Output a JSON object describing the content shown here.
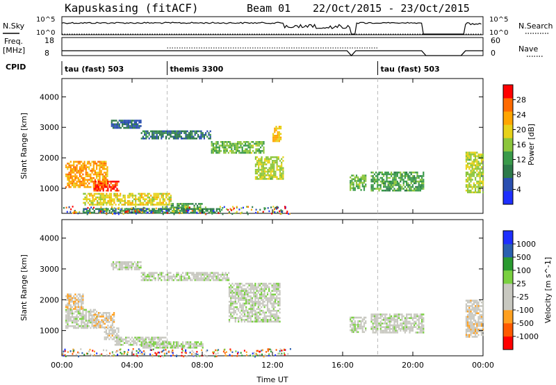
{
  "header": {
    "title": "Kapuskasing (fitACF)",
    "beam": "Beam 01",
    "date_range": "22/Oct/2015 - 23/Oct/2015"
  },
  "noise_panel": {
    "left_label": "N.Sky",
    "right_label": "N.Search",
    "left_ticks": [
      "10^5",
      "10^0"
    ],
    "right_ticks": [
      "10^5",
      "10^0"
    ]
  },
  "freq_panel": {
    "left_label_1": "Freq.",
    "left_label_2": "[MHz]",
    "right_label": "Nave",
    "left_ticks": [
      "18",
      "8"
    ],
    "right_ticks": [
      "60",
      "0"
    ]
  },
  "cpid": {
    "label": "CPID",
    "segments": [
      {
        "name": "tau (fast) 503",
        "start": 0
      },
      {
        "name": "themis 3300",
        "start": 6
      },
      {
        "name": "tau (fast) 503",
        "start": 18
      }
    ]
  },
  "colors": {
    "power": [
      "#1e2fff",
      "#2a4fb0",
      "#2d7a4a",
      "#3a9a4a",
      "#8cc63c",
      "#e7d21a",
      "#ffa500",
      "#ff6a00",
      "#ff0000"
    ],
    "velocity": [
      "#ff0000",
      "#ff5a00",
      "#ffa020",
      "#c8c8c0",
      "#c8c8c0",
      "#7ad040",
      "#2a9a30",
      "#2a60b0",
      "#1e2fff"
    ]
  },
  "chart_data": [
    {
      "type": "heatmap",
      "name": "power",
      "xlabel": "",
      "ylabel": "Slant Range [km]",
      "xlim": [
        0,
        24
      ],
      "ylim": [
        180,
        4600
      ],
      "yticks": [
        1000,
        2000,
        3000,
        4000
      ],
      "xticks": [
        0,
        4,
        8,
        12,
        16,
        20,
        24
      ],
      "xtick_labels": [
        "00:00",
        "04:00",
        "08:00",
        "12:00",
        "16:00",
        "20:00",
        "00:00"
      ],
      "colorbar": {
        "label": "Power [dB]",
        "ticks": [
          "4",
          "8",
          "12",
          "16",
          "20",
          "24",
          "28"
        ],
        "range": [
          0,
          30
        ]
      },
      "bands": [
        {
          "x0": 0.2,
          "x1": 2.6,
          "r0": 1050,
          "r1": 1900,
          "v": 22
        },
        {
          "x0": 1.8,
          "x1": 3.2,
          "r0": 900,
          "r1": 1250,
          "v": 27
        },
        {
          "x0": 1.2,
          "x1": 6.2,
          "r0": 450,
          "r1": 850,
          "v": 18
        },
        {
          "x0": 6.2,
          "x1": 8.0,
          "r0": 350,
          "r1": 520,
          "v": 12
        },
        {
          "x0": 1.2,
          "x1": 9.0,
          "r0": 200,
          "r1": 350,
          "v": 9
        },
        {
          "x0": 2.8,
          "x1": 4.5,
          "r0": 3000,
          "r1": 3250,
          "v": 6
        },
        {
          "x0": 4.5,
          "x1": 8.5,
          "r0": 2650,
          "r1": 2900,
          "v": 8
        },
        {
          "x0": 8.5,
          "x1": 11.5,
          "r0": 2150,
          "r1": 2550,
          "v": 14
        },
        {
          "x0": 11.0,
          "x1": 12.6,
          "r0": 1300,
          "r1": 2050,
          "v": 16
        },
        {
          "x0": 12.0,
          "x1": 12.5,
          "r0": 2550,
          "r1": 3050,
          "v": 20
        },
        {
          "x0": 16.4,
          "x1": 17.3,
          "r0": 950,
          "r1": 1450,
          "v": 14
        },
        {
          "x0": 17.6,
          "x1": 20.6,
          "r0": 950,
          "r1": 1550,
          "v": 12
        },
        {
          "x0": 23.0,
          "x1": 24.0,
          "r0": 850,
          "r1": 2200,
          "v": 16
        }
      ]
    },
    {
      "type": "heatmap",
      "name": "velocity",
      "xlabel": "Time UT",
      "ylabel": "Slant Range [km]",
      "xlim": [
        0,
        24
      ],
      "ylim": [
        180,
        4600
      ],
      "yticks": [
        1000,
        2000,
        3000,
        4000
      ],
      "xticks": [
        0,
        4,
        8,
        12,
        16,
        20,
        24
      ],
      "xtick_labels": [
        "00:00",
        "04:00",
        "08:00",
        "12:00",
        "16:00",
        "20:00",
        "00:00"
      ],
      "colorbar": {
        "label": "Velocity [m s^-1]",
        "ticks": [
          "-1000",
          "-500",
          "-100",
          "-25",
          "25",
          "100",
          "500",
          "1000"
        ],
        "range": [
          -1200,
          1200
        ]
      },
      "bands": [
        {
          "x0": 0.2,
          "x1": 1.2,
          "r0": 1700,
          "r1": 2200,
          "v": -300
        },
        {
          "x0": 0.2,
          "x1": 2.0,
          "r0": 1100,
          "r1": 1700,
          "v": 0
        },
        {
          "x0": 1.8,
          "x1": 3.0,
          "r0": 1100,
          "r1": 1600,
          "v": -300
        },
        {
          "x0": 2.4,
          "x1": 3.2,
          "r0": 700,
          "r1": 1100,
          "v": -200
        },
        {
          "x0": 3.0,
          "x1": 6.0,
          "r0": 550,
          "r1": 800,
          "v": 0
        },
        {
          "x0": 4.5,
          "x1": 8.0,
          "r0": 450,
          "r1": 650,
          "v": 80
        },
        {
          "x0": 2.8,
          "x1": 4.5,
          "r0": 3000,
          "r1": 3250,
          "v": 0
        },
        {
          "x0": 4.5,
          "x1": 9.5,
          "r0": 2650,
          "r1": 2900,
          "v": 0
        },
        {
          "x0": 9.5,
          "x1": 12.4,
          "r0": 1300,
          "r1": 2550,
          "v": 0
        },
        {
          "x0": 16.4,
          "x1": 17.3,
          "r0": 950,
          "r1": 1450,
          "v": 0
        },
        {
          "x0": 17.6,
          "x1": 20.6,
          "r0": 950,
          "r1": 1550,
          "v": 0
        },
        {
          "x0": 23.0,
          "x1": 24.0,
          "r0": 800,
          "r1": 2000,
          "v": -250
        }
      ]
    }
  ]
}
